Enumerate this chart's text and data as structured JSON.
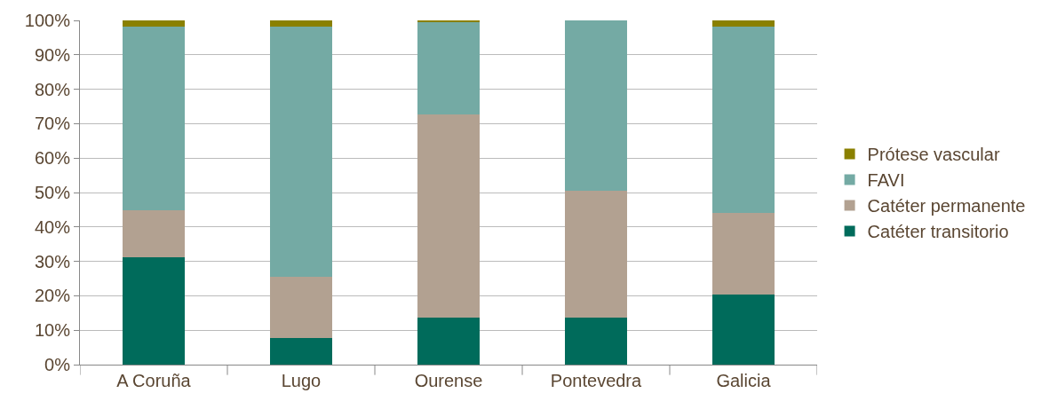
{
  "chart_data": {
    "type": "bar",
    "stacked": true,
    "categories": [
      "A Coruña",
      "Lugo",
      "Ourense",
      "Pontevedra",
      "Galicia"
    ],
    "series": [
      {
        "name": "Catéter transitorio",
        "color": "#006b5b",
        "values": [
          31.1,
          7.8,
          13.7,
          13.7,
          20.3
        ]
      },
      {
        "name": "Catéter permanente",
        "color": "#b2a191",
        "values": [
          13.7,
          17.8,
          59,
          36.7,
          23.8
        ]
      },
      {
        "name": "FAVI",
        "color": "#74aaa4",
        "values": [
          53.4,
          72.6,
          27,
          49.6,
          54.1
        ]
      },
      {
        "name": "Prótese vascular",
        "color": "#8a8000",
        "values": [
          1.8,
          1.8,
          0.3,
          0,
          1.8
        ]
      }
    ],
    "ylim": [
      0,
      100
    ],
    "yticks": [
      {
        "value": 0,
        "label": "0%"
      },
      {
        "value": 10,
        "label": "10%"
      },
      {
        "value": 20,
        "label": "20%"
      },
      {
        "value": 30,
        "label": "30%"
      },
      {
        "value": 40,
        "label": "40%"
      },
      {
        "value": 50,
        "label": "50%"
      },
      {
        "value": 60,
        "label": "60%"
      },
      {
        "value": 70,
        "label": "70%"
      },
      {
        "value": 80,
        "label": "80%"
      },
      {
        "value": 90,
        "label": "90%"
      },
      {
        "value": 100,
        "label": "100%"
      }
    ],
    "grid": "y",
    "legend": "right"
  }
}
